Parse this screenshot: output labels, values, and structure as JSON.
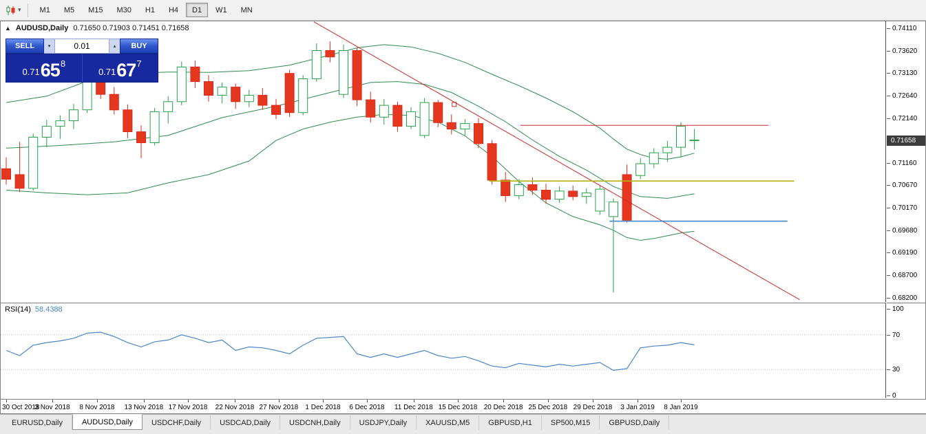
{
  "toolbar": {
    "timeframes": [
      "M1",
      "M5",
      "M15",
      "M30",
      "H1",
      "H4",
      "D1",
      "W1",
      "MN"
    ],
    "active_timeframe": "D1",
    "caret_glyph": "▾",
    "chart_icon": "candlestick-chart-icon"
  },
  "chart": {
    "collapse_icon": "▲",
    "symbol_label": "AUDUSD,Daily",
    "ohlc_label": "0.71650 0.71903 0.71451 0.71658"
  },
  "one_click": {
    "sell_label": "SELL",
    "buy_label": "BUY",
    "volume": "0.01",
    "spin_down_glyph": "▾",
    "spin_up_glyph": "▴",
    "sell_price": {
      "base": "0.71",
      "pips": "65",
      "point": "8"
    },
    "buy_price": {
      "base": "0.71",
      "pips": "67",
      "point": "7"
    }
  },
  "price_axis": {
    "current": "0.71658"
  },
  "rsi_panel": {
    "name": "RSI(14)",
    "value": "58.4388"
  },
  "tabs": {
    "active_index": 1,
    "items": [
      "EURUSD,Daily",
      "AUDUSD,Daily",
      "USDCHF,Daily",
      "USDCAD,Daily",
      "USDCNH,Daily",
      "USDJPY,Daily",
      "XAUUSD,M5",
      "GBPUSD,H1",
      "SP500,M15",
      "GBPUSD,Daily"
    ]
  },
  "colors": {
    "up": "#26a248",
    "up_fill": "#ffffff",
    "down": "#d92d1b",
    "down_fill": "#e5371f",
    "bands": "#2e8b50",
    "rsi": "#4a86c8",
    "trend": "#cc2a2a",
    "hline_red": "#cc2a2a",
    "hline_yellow": "#b2b400",
    "hline_blue": "#3f86c8",
    "tag_bg": "#3c3c3c"
  },
  "chart_data": {
    "type": "candlestick",
    "title": "AUDUSD,Daily",
    "current_price": 0.71658,
    "current_ohlc": {
      "open": 0.7165,
      "high": 0.71903,
      "low": 0.71451,
      "close": 0.71658
    },
    "price_range": [
      0.682,
      0.7411
    ],
    "axis_ticks": [
      {
        "p": 0.7411,
        "label": "0.74110"
      },
      {
        "p": 0.7362,
        "label": "0.73620"
      },
      {
        "p": 0.7313,
        "label": "0.73130"
      },
      {
        "p": 0.7264,
        "label": "0.72640"
      },
      {
        "p": 0.7214,
        "label": "0.72140"
      },
      {
        "p": 0.7165,
        "label": "0.71650"
      },
      {
        "p": 0.7116,
        "label": "0.71160"
      },
      {
        "p": 0.7067,
        "label": "0.70670"
      },
      {
        "p": 0.7017,
        "label": "0.70170"
      },
      {
        "p": 0.6968,
        "label": "0.69680"
      },
      {
        "p": 0.6919,
        "label": "0.69190"
      },
      {
        "p": 0.687,
        "label": "0.68700"
      },
      {
        "p": 0.682,
        "label": "0.68200"
      }
    ],
    "time_ticks": [
      {
        "i": 0,
        "label": "30 Oct 2018"
      },
      {
        "i": 3.42,
        "label": "3 Nov 2018"
      },
      {
        "i": 6.73,
        "label": "8 Nov 2018"
      },
      {
        "i": 10.2,
        "label": "13 Nov 2018"
      },
      {
        "i": 13.47,
        "label": "17 Nov 2018"
      },
      {
        "i": 16.94,
        "label": "22 Nov 2018"
      },
      {
        "i": 20.2,
        "label": "27 Nov 2018"
      },
      {
        "i": 23.47,
        "label": "1 Dec 2018"
      },
      {
        "i": 26.73,
        "label": "6 Dec 2018"
      },
      {
        "i": 30.2,
        "label": "11 Dec 2018"
      },
      {
        "i": 33.47,
        "label": "15 Dec 2018"
      },
      {
        "i": 36.84,
        "label": "20 Dec 2018"
      },
      {
        "i": 40.15,
        "label": "25 Dec 2018"
      },
      {
        "i": 43.47,
        "label": "29 Dec 2018"
      },
      {
        "i": 46.79,
        "label": "3 Jan 2019"
      },
      {
        "i": 50,
        "label": "8 Jan 2019"
      }
    ],
    "candles": [
      [
        0.7103,
        0.7128,
        0.7068,
        0.708
      ],
      [
        0.709,
        0.7162,
        0.7052,
        0.706
      ],
      [
        0.706,
        0.718,
        0.7055,
        0.7172
      ],
      [
        0.7172,
        0.721,
        0.715,
        0.7196
      ],
      [
        0.7196,
        0.722,
        0.7168,
        0.7208
      ],
      [
        0.7208,
        0.7245,
        0.719,
        0.7232
      ],
      [
        0.7232,
        0.7312,
        0.7225,
        0.7295
      ],
      [
        0.7298,
        0.7316,
        0.7256,
        0.7266
      ],
      [
        0.7266,
        0.7282,
        0.7222,
        0.7232
      ],
      [
        0.7232,
        0.7244,
        0.717,
        0.7184
      ],
      [
        0.7184,
        0.7198,
        0.7126,
        0.716
      ],
      [
        0.716,
        0.7236,
        0.7154,
        0.7228
      ],
      [
        0.7228,
        0.7262,
        0.7202,
        0.725
      ],
      [
        0.725,
        0.7338,
        0.7242,
        0.7326
      ],
      [
        0.7326,
        0.734,
        0.728,
        0.7294
      ],
      [
        0.7294,
        0.7308,
        0.725,
        0.7264
      ],
      [
        0.7264,
        0.7292,
        0.7246,
        0.7282
      ],
      [
        0.7282,
        0.729,
        0.7234,
        0.725
      ],
      [
        0.725,
        0.7276,
        0.7238,
        0.7264
      ],
      [
        0.7264,
        0.728,
        0.7232,
        0.7242
      ],
      [
        0.7242,
        0.7256,
        0.7212,
        0.7222
      ],
      [
        0.7312,
        0.732,
        0.7216,
        0.7226
      ],
      [
        0.7226,
        0.7308,
        0.722,
        0.73
      ],
      [
        0.73,
        0.7378,
        0.7294,
        0.7362
      ],
      [
        0.7362,
        0.7382,
        0.7336,
        0.7348
      ],
      [
        0.7266,
        0.7375,
        0.7258,
        0.7362
      ],
      [
        0.7362,
        0.7368,
        0.724,
        0.7254
      ],
      [
        0.7254,
        0.7272,
        0.7204,
        0.7216
      ],
      [
        0.7216,
        0.7256,
        0.72,
        0.7242
      ],
      [
        0.7242,
        0.725,
        0.7184,
        0.7196
      ],
      [
        0.7196,
        0.7238,
        0.719,
        0.7228
      ],
      [
        0.7176,
        0.7258,
        0.717,
        0.7248
      ],
      [
        0.7248,
        0.7254,
        0.7194,
        0.7204
      ],
      [
        0.7204,
        0.7222,
        0.7178,
        0.719
      ],
      [
        0.719,
        0.7212,
        0.7176,
        0.7202
      ],
      [
        0.7202,
        0.7214,
        0.7148,
        0.7158
      ],
      [
        0.7158,
        0.7166,
        0.7068,
        0.7078
      ],
      [
        0.7078,
        0.7096,
        0.703,
        0.7044
      ],
      [
        0.7044,
        0.708,
        0.7036,
        0.7068
      ],
      [
        0.7068,
        0.7084,
        0.7046,
        0.7056
      ],
      [
        0.7056,
        0.707,
        0.7026,
        0.7036
      ],
      [
        0.7036,
        0.7064,
        0.7028,
        0.7054
      ],
      [
        0.7054,
        0.7066,
        0.7034,
        0.7042
      ],
      [
        0.7042,
        0.706,
        0.7026,
        0.705
      ],
      [
        0.701,
        0.7066,
        0.7002,
        0.7058
      ],
      [
        0.6998,
        0.7038,
        0.6832,
        0.703
      ],
      [
        0.709,
        0.7112,
        0.6985,
        0.699
      ],
      [
        0.7088,
        0.7126,
        0.708,
        0.7114
      ],
      [
        0.7114,
        0.7148,
        0.7104,
        0.7138
      ],
      [
        0.7138,
        0.7164,
        0.7118,
        0.715
      ],
      [
        0.715,
        0.7205,
        0.7128,
        0.7196
      ],
      [
        0.7165,
        0.71903,
        0.71451,
        0.71658
      ]
    ],
    "bollinger": {
      "upper": [
        [
          0,
          0.7248
        ],
        [
          3,
          0.7262
        ],
        [
          6,
          0.7295
        ],
        [
          9,
          0.7312
        ],
        [
          12,
          0.7315
        ],
        [
          15,
          0.7314
        ],
        [
          18,
          0.7318
        ],
        [
          21,
          0.733
        ],
        [
          24,
          0.7352
        ],
        [
          26,
          0.7368
        ],
        [
          28,
          0.7375
        ],
        [
          30,
          0.737
        ],
        [
          32,
          0.7356
        ],
        [
          34,
          0.7336
        ],
        [
          36,
          0.731
        ],
        [
          38,
          0.7285
        ],
        [
          40,
          0.7258
        ],
        [
          42,
          0.7228
        ],
        [
          44,
          0.7192
        ],
        [
          45,
          0.7168
        ],
        [
          46,
          0.7146
        ],
        [
          47,
          0.7134
        ],
        [
          48,
          0.7126
        ],
        [
          49,
          0.7124
        ],
        [
          50,
          0.7129
        ],
        [
          51,
          0.7137
        ]
      ],
      "middle": [
        [
          0,
          0.7148
        ],
        [
          4,
          0.7154
        ],
        [
          8,
          0.7162
        ],
        [
          12,
          0.7176
        ],
        [
          16,
          0.7215
        ],
        [
          20,
          0.724
        ],
        [
          24,
          0.727
        ],
        [
          27,
          0.7292
        ],
        [
          29,
          0.7294
        ],
        [
          31,
          0.7288
        ],
        [
          33,
          0.727
        ],
        [
          35,
          0.724
        ],
        [
          37,
          0.7206
        ],
        [
          39,
          0.7166
        ],
        [
          41,
          0.713
        ],
        [
          43,
          0.71
        ],
        [
          45,
          0.7064
        ],
        [
          47,
          0.7042
        ],
        [
          49,
          0.7038
        ],
        [
          51,
          0.7048
        ]
      ],
      "lower": [
        [
          0,
          0.7056
        ],
        [
          3,
          0.705
        ],
        [
          6,
          0.7046
        ],
        [
          9,
          0.705
        ],
        [
          12,
          0.7072
        ],
        [
          15,
          0.709
        ],
        [
          18,
          0.712
        ],
        [
          20,
          0.7165
        ],
        [
          22,
          0.719
        ],
        [
          24,
          0.7205
        ],
        [
          26,
          0.7216
        ],
        [
          28,
          0.7222
        ],
        [
          30,
          0.722
        ],
        [
          32,
          0.7205
        ],
        [
          34,
          0.7175
        ],
        [
          36,
          0.713
        ],
        [
          38,
          0.7075
        ],
        [
          40,
          0.7028
        ],
        [
          42,
          0.6998
        ],
        [
          44,
          0.698
        ],
        [
          45,
          0.6968
        ],
        [
          46,
          0.6952
        ],
        [
          47,
          0.6946
        ],
        [
          48,
          0.695
        ],
        [
          49,
          0.6956
        ],
        [
          50,
          0.6962
        ],
        [
          51,
          0.6966
        ]
      ]
    },
    "objects": {
      "trendline": {
        "i1": 22.8,
        "p1": 0.7425,
        "i2": 58.8,
        "p2": 0.6816
      },
      "trendline_marker": {
        "i": 33.2,
        "p": 0.7244
      },
      "hlines": [
        {
          "p": 0.7198,
          "i1": 38.1,
          "i2": 56.5,
          "color": "#cc2a2a",
          "width": 1
        },
        {
          "p": 0.7076,
          "i1": 35.8,
          "i2": 58.4,
          "color": "#b2b400",
          "width": 1.6
        },
        {
          "p": 0.6988,
          "i1": 44.7,
          "i2": 57.9,
          "color": "#3f86c8",
          "width": 1.6
        }
      ]
    },
    "rsi": {
      "period": 14,
      "current": 58.4388,
      "range": [
        0,
        100
      ],
      "levels_dotted": [
        70,
        30
      ],
      "axis_labels": [
        {
          "v": 100,
          "label": "100"
        },
        {
          "v": 70,
          "label": "70"
        },
        {
          "v": 30,
          "label": "30"
        },
        {
          "v": 0,
          "label": "0"
        }
      ],
      "values": [
        52,
        46,
        58,
        61,
        63,
        66,
        72,
        73,
        68,
        61,
        56,
        62,
        64,
        70,
        66,
        61,
        64,
        52,
        56,
        55,
        52,
        48,
        58,
        66,
        67,
        68,
        48,
        44,
        48,
        44,
        48,
        52,
        46,
        43,
        45,
        40,
        34,
        32,
        37,
        35,
        33,
        36,
        34,
        36,
        38,
        29,
        31,
        55,
        57,
        58,
        61,
        58.4
      ]
    }
  }
}
